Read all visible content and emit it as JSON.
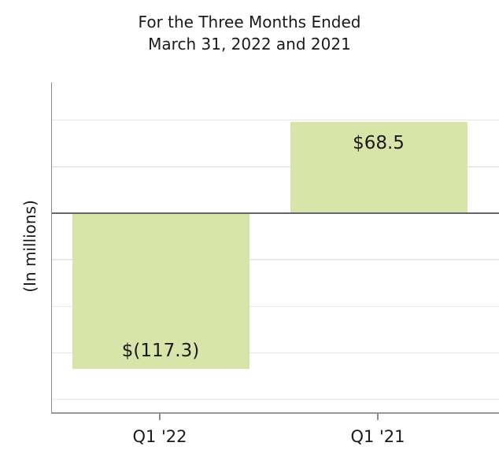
{
  "chart_data": {
    "type": "bar",
    "title_lines": [
      "For the Three Months Ended",
      "March 31, 2022 and 2021"
    ],
    "ylabel": "(In millions)",
    "xlabel": "",
    "categories": [
      "Q1 '22",
      "Q1 '21"
    ],
    "values": [
      -117.3,
      68.5
    ],
    "bar_value_labels": [
      "$(117.3)",
      "$68.5"
    ],
    "ylim": [
      -153,
      99
    ],
    "gridline_values": [
      70,
      35,
      -35,
      -70,
      -105,
      -140
    ],
    "zero_line": true,
    "grid": "horizontal",
    "legend": false,
    "y_tick_labels_visible": false
  },
  "colors": {
    "bar_fill": "#d9e4a8",
    "grid_line": "#e8e8e8",
    "zero_line": "#666666",
    "axis_spine": "#8c8c8c",
    "text": "#1a1a1a",
    "background": "#ffffff"
  }
}
